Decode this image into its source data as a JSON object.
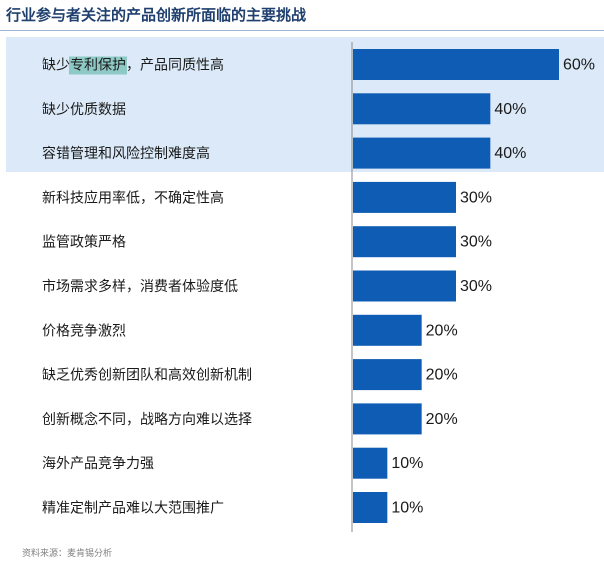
{
  "title": "行业参与者关注的产品创新所面临的主要挑战",
  "source": "资料来源：麦肯锡分析",
  "colors": {
    "bar": "#0e5cb4",
    "highlight_band": "#dbe9f8",
    "text_highlight": "#8ec9c6",
    "title": "#1f3f6e"
  },
  "chart_data": {
    "type": "bar",
    "orientation": "horizontal",
    "title": "行业参与者关注的产品创新所面临的主要挑战",
    "xlabel": "",
    "ylabel": "",
    "xlim": [
      0,
      60
    ],
    "grid": false,
    "legend": "none",
    "highlighted_categories": [
      0,
      1,
      2
    ],
    "text_highlight": "专利保护",
    "categories": [
      "缺少专利保护，产品同质性高",
      "缺少优质数据",
      "容错管理和风险控制难度高",
      "新科技应用率低，不确定性高",
      "监管政策严格",
      "市场需求多样，消费者体验度低",
      "价格竞争激烈",
      "缺乏优秀创新团队和高效创新机制",
      "创新概念不同，战略方向难以选择",
      "海外产品竞争力强",
      "精准定制产品难以大范围推广"
    ],
    "values": [
      60,
      40,
      40,
      30,
      30,
      30,
      20,
      20,
      20,
      10,
      10
    ],
    "value_labels": [
      "60%",
      "40%",
      "40%",
      "30%",
      "30%",
      "30%",
      "20%",
      "20%",
      "20%",
      "10%",
      "10%"
    ]
  }
}
